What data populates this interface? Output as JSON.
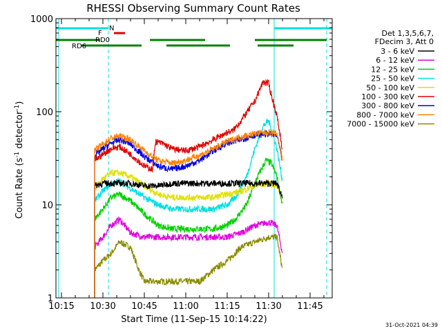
{
  "chart_data": {
    "type": "line",
    "title": "RHESSI Observing Summary Count Rates",
    "xlabel": "Start Time (11-Sep-15 10:14:22)",
    "ylabel_parts": [
      "Count Rate (s",
      "-1",
      " detector",
      "-1",
      ")"
    ],
    "ylim": [
      1,
      1000
    ],
    "yscale": "log",
    "xlim": [
      "10:13",
      "11:53"
    ],
    "x_ticks": [
      "10:15",
      "10:30",
      "10:45",
      "11:00",
      "11:15",
      "11:30",
      "11:45"
    ],
    "y_ticks": [
      "1",
      "10",
      "100",
      "1000"
    ],
    "legend_header": [
      "Det 1,3,5,6,7,",
      "FDecim 3, Att 0"
    ],
    "legend_placement": "right",
    "footer_timestamp": "31-Oct-2021 04:39",
    "series": [
      {
        "name": "3 - 6 keV",
        "color": "#000000",
        "x": [
          "10:27",
          "10:30",
          "10:35",
          "10:40",
          "10:45",
          "10:50",
          "10:55",
          "11:00",
          "11:05",
          "11:10",
          "11:15",
          "11:20",
          "11:25",
          "11:30",
          "11:33",
          "11:35"
        ],
        "y": [
          16,
          17,
          17,
          17,
          16,
          16,
          17,
          17,
          17,
          17,
          17,
          17,
          17,
          17,
          17,
          12
        ]
      },
      {
        "name": "6 - 12 keV",
        "color": "#e000e0",
        "x": [
          "10:27",
          "10:30",
          "10:33",
          "10:36",
          "10:40",
          "10:45",
          "10:50",
          "10:55",
          "11:00",
          "11:05",
          "11:10",
          "11:15",
          "11:20",
          "11:25",
          "11:30",
          "11:33",
          "11:35"
        ],
        "y": [
          3.5,
          4.5,
          6,
          7,
          5,
          4.5,
          4.5,
          4.5,
          4.5,
          4.5,
          4.5,
          4.5,
          5,
          6,
          6.5,
          6,
          3
        ]
      },
      {
        "name": "12 - 25 keV",
        "color": "#00d000",
        "x": [
          "10:27",
          "10:30",
          "10:33",
          "10:36",
          "10:40",
          "10:45",
          "10:50",
          "10:55",
          "11:00",
          "11:05",
          "11:10",
          "11:15",
          "11:18",
          "11:22",
          "11:26",
          "11:29",
          "11:31",
          "11:33",
          "11:35"
        ],
        "y": [
          7,
          9,
          12,
          13,
          11,
          8,
          6,
          5.5,
          5.5,
          5.5,
          5.5,
          6,
          7,
          10,
          20,
          30,
          28,
          20,
          10
        ]
      },
      {
        "name": "25 - 50 keV",
        "color": "#00e0e0",
        "x": [
          "10:27",
          "10:30",
          "10:33",
          "10:36",
          "10:40",
          "10:45",
          "10:50",
          "10:55",
          "11:00",
          "11:05",
          "11:10",
          "11:15",
          "11:18",
          "11:22",
          "11:25",
          "11:28",
          "11:30",
          "11:31",
          "11:33",
          "11:35"
        ],
        "y": [
          11,
          14,
          17,
          18,
          15,
          12,
          10,
          9,
          9,
          9,
          9,
          10,
          12,
          20,
          40,
          70,
          80,
          65,
          40,
          18
        ]
      },
      {
        "name": "50 - 100 keV",
        "color": "#e0e000",
        "x": [
          "10:27",
          "10:30",
          "10:33",
          "10:36",
          "10:40",
          "10:45",
          "10:50",
          "10:55",
          "11:00",
          "11:05",
          "11:10",
          "11:15",
          "11:20",
          "11:25",
          "11:30",
          "11:33",
          "11:35"
        ],
        "y": [
          15,
          19,
          22,
          22,
          20,
          16,
          13,
          12,
          12,
          12,
          12,
          13,
          14,
          16,
          17,
          16,
          12
        ]
      },
      {
        "name": "100 - 300 keV",
        "color": "#e00000",
        "x": [
          "10:27",
          "10:30",
          "10:33",
          "10:36",
          "10:40",
          "10:45",
          "10:48",
          "10:49",
          "10:52",
          "10:55",
          "11:00",
          "11:05",
          "11:10",
          "11:15",
          "11:17",
          "11:20",
          "11:25",
          "11:28",
          "11:30",
          "11:31",
          "11:33",
          "11:35"
        ],
        "y": [
          30,
          35,
          40,
          42,
          35,
          26,
          24,
          48,
          45,
          40,
          38,
          42,
          50,
          60,
          62,
          80,
          130,
          210,
          200,
          150,
          90,
          40
        ]
      },
      {
        "name": "300 - 800 keV",
        "color": "#0000e0",
        "x": [
          "10:27",
          "10:30",
          "10:33",
          "10:36",
          "10:40",
          "10:45",
          "10:50",
          "10:55",
          "11:00",
          "11:05",
          "11:10",
          "11:15",
          "11:20",
          "11:25",
          "11:30",
          "11:33",
          "11:35"
        ],
        "y": [
          34,
          40,
          46,
          50,
          45,
          33,
          26,
          24,
          26,
          30,
          38,
          46,
          50,
          56,
          58,
          55,
          30
        ]
      },
      {
        "name": "800 - 7000 keV",
        "color": "#ff8000",
        "x": [
          "10:27",
          "10:30",
          "10:33",
          "10:36",
          "10:40",
          "10:45",
          "10:50",
          "10:55",
          "11:00",
          "11:05",
          "11:10",
          "11:15",
          "11:20",
          "11:25",
          "11:30",
          "11:33",
          "11:35"
        ],
        "y": [
          38,
          45,
          52,
          55,
          50,
          38,
          30,
          28,
          30,
          34,
          40,
          48,
          54,
          58,
          60,
          58,
          30
        ]
      },
      {
        "name": "7000 - 15000 keV",
        "color": "#8b8b00",
        "x": [
          "10:27",
          "10:30",
          "10:33",
          "10:36",
          "10:40",
          "10:43",
          "10:45",
          "10:50",
          "10:55",
          "11:00",
          "11:05",
          "11:10",
          "11:15",
          "11:20",
          "11:25",
          "11:30",
          "11:33",
          "11:35"
        ],
        "y": [
          2,
          2.5,
          3,
          4,
          3.5,
          2,
          1.5,
          1.5,
          1.5,
          1.5,
          1.5,
          2,
          2.5,
          3.5,
          4,
          4.5,
          4.5,
          2
        ]
      }
    ],
    "flag_bars": [
      {
        "label": "N",
        "color": "#00e0e0",
        "level": 1,
        "segments": [
          [
            "10:13",
            "10:32"
          ],
          [
            "11:32",
            "11:53"
          ]
        ]
      },
      {
        "label": "F",
        "color": "#e00000",
        "level": 2,
        "segments": [
          [
            "10:34",
            "10:38"
          ]
        ]
      },
      {
        "label": "RD0",
        "color": "#008000",
        "level": 3,
        "segments": [
          [
            "10:13",
            "10:29"
          ],
          [
            "10:47",
            "11:07"
          ],
          [
            "11:25",
            "11:51"
          ]
        ]
      },
      {
        "label": "RD6",
        "color": "#008000",
        "level": 4,
        "segments": [
          [
            "10:22",
            "10:44"
          ],
          [
            "10:53",
            "11:16"
          ],
          [
            "11:26",
            "11:39"
          ]
        ]
      }
    ],
    "vertical_lines": [
      {
        "x": "10:14",
        "color": "#00e0e0",
        "style": "solid"
      },
      {
        "x": "10:32",
        "color": "#00e0e0",
        "style": "dashed"
      },
      {
        "x": "11:32",
        "color": "#00e0e0",
        "style": "solid"
      },
      {
        "x": "11:51",
        "color": "#00e0e0",
        "style": "dashed"
      }
    ]
  }
}
